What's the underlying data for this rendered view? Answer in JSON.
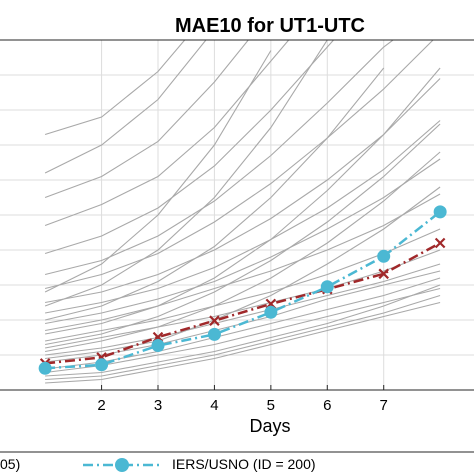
{
  "chart_data": {
    "type": "line",
    "title": "MAE10 for UT1-UTC",
    "xlabel": "Days",
    "ylabel": "",
    "x_ticks": [
      2,
      3,
      4,
      5,
      6,
      7
    ],
    "xlim": [
      0.2,
      8.6
    ],
    "ylim": [
      0,
      100
    ],
    "grid": true,
    "legend_position": "bottom",
    "highlight_series": [
      {
        "name": "IERS/USNO (ID = 200)",
        "color": "#4bb8d3",
        "style": "dash-dot",
        "marker": "circle",
        "x": [
          1,
          2,
          3,
          4,
          5,
          6,
          7,
          8
        ],
        "y": [
          6.2,
          7.2,
          12.7,
          15.9,
          22.2,
          29.5,
          38.2,
          50.9
        ]
      },
      {
        "name": "",
        "legend_label_fragment": "05)",
        "color": "#a0282a",
        "style": "dash-dot",
        "marker": "x",
        "x": [
          1,
          2,
          3,
          4,
          5,
          6,
          7,
          8
        ],
        "y": [
          7.6,
          9.3,
          15.1,
          19.8,
          24.6,
          28.8,
          33.2,
          42.0
        ]
      }
    ],
    "gray_series": [
      {
        "x": [
          1,
          2,
          3
        ],
        "y": [
          116,
          117,
          124
        ]
      },
      {
        "x": [
          1,
          2,
          3,
          4
        ],
        "y": [
          73,
          78,
          91,
          110
        ]
      },
      {
        "x": [
          1,
          2,
          3,
          4
        ],
        "y": [
          62,
          70,
          83,
          103
        ]
      },
      {
        "x": [
          1,
          2,
          3,
          4,
          5
        ],
        "y": [
          55,
          61,
          71,
          88,
          108
        ]
      },
      {
        "x": [
          1,
          2,
          3,
          4,
          5,
          6
        ],
        "y": [
          47,
          53,
          61,
          75,
          94,
          113
        ]
      },
      {
        "x": [
          1,
          2,
          3,
          4,
          5,
          6,
          7
        ],
        "y": [
          39,
          44,
          52,
          64,
          80,
          98,
          116
        ]
      },
      {
        "x": [
          1,
          2,
          3,
          4,
          5,
          6,
          7,
          8
        ],
        "y": [
          33,
          37,
          44,
          54,
          67,
          82,
          98,
          110
        ]
      },
      {
        "x": [
          1,
          2,
          3,
          4,
          5,
          6,
          7,
          8
        ],
        "y": [
          29,
          33,
          39,
          48,
          59,
          72,
          86,
          102
        ]
      },
      {
        "x": [
          1,
          2,
          3,
          4,
          5,
          6,
          7,
          8
        ],
        "y": [
          25,
          28,
          33,
          40,
          49,
          60,
          73,
          89
        ]
      },
      {
        "x": [
          1,
          2,
          3,
          4,
          5,
          6,
          7,
          8
        ],
        "y": [
          22,
          25,
          29,
          35,
          43,
          52,
          63,
          77
        ]
      },
      {
        "x": [
          1,
          2,
          3,
          4,
          5,
          6,
          7,
          8
        ],
        "y": [
          19,
          22,
          26,
          31,
          38,
          46,
          55,
          66
        ]
      },
      {
        "x": [
          1,
          2,
          3,
          4,
          5,
          6,
          7,
          8
        ],
        "y": [
          17,
          20,
          24,
          29,
          34,
          40,
          47,
          56
        ]
      },
      {
        "x": [
          1,
          2,
          3,
          4,
          5,
          6,
          7,
          8
        ],
        "y": [
          14,
          17,
          20,
          24,
          28,
          33,
          39,
          46
        ]
      },
      {
        "x": [
          1,
          2,
          3,
          4,
          5,
          6,
          7,
          8
        ],
        "y": [
          12,
          15,
          18,
          21,
          25,
          29,
          34,
          40
        ]
      },
      {
        "x": [
          1,
          2,
          3,
          4,
          5,
          6,
          7,
          8
        ],
        "y": [
          10,
          12,
          15,
          19,
          23,
          27,
          31,
          36
        ]
      },
      {
        "x": [
          1,
          2,
          3,
          4,
          5,
          6,
          7,
          8
        ],
        "y": [
          8,
          10,
          13,
          17,
          21,
          26,
          30,
          34
        ]
      },
      {
        "x": [
          1,
          2,
          3,
          4,
          5,
          6,
          7,
          8
        ],
        "y": [
          6,
          8,
          11,
          15,
          19,
          23,
          27,
          32
        ]
      },
      {
        "x": [
          1,
          2,
          3,
          4,
          5,
          6,
          7,
          8
        ],
        "y": [
          5,
          7,
          10,
          13,
          17,
          21,
          25,
          29
        ]
      },
      {
        "x": [
          1,
          2,
          3,
          4,
          5,
          6,
          7,
          8
        ],
        "y": [
          4,
          5,
          8,
          11,
          15,
          19,
          24,
          30
        ]
      },
      {
        "x": [
          1,
          2,
          3,
          4,
          5,
          6,
          7,
          8
        ],
        "y": [
          3,
          4,
          7,
          10,
          14,
          18,
          22,
          27
        ]
      },
      {
        "x": [
          1,
          2,
          3,
          4,
          5,
          6,
          7,
          8
        ],
        "y": [
          2,
          3,
          6,
          9,
          13,
          17,
          21,
          25
        ]
      },
      {
        "x": [
          1,
          2,
          3,
          4,
          5,
          6,
          7,
          8
        ],
        "y": [
          9,
          11,
          14,
          20,
          27,
          36,
          46,
          58
        ]
      },
      {
        "x": [
          1,
          2,
          3,
          4,
          5,
          6,
          7,
          8
        ],
        "y": [
          11,
          14,
          18,
          24,
          32,
          42,
          54,
          68
        ]
      },
      {
        "x": [
          1,
          2,
          3,
          4,
          5,
          6,
          7,
          8
        ],
        "y": [
          13,
          16,
          21,
          28,
          37,
          48,
          61,
          76
        ]
      },
      {
        "x": [
          1,
          2,
          3,
          4,
          5,
          6,
          7,
          8
        ],
        "y": [
          16,
          19,
          24,
          32,
          43,
          57,
          73,
          92
        ]
      },
      {
        "x": [
          1,
          2,
          3,
          4,
          5,
          6,
          7
        ],
        "y": [
          20,
          24,
          31,
          41,
          55,
          72,
          92
        ]
      },
      {
        "x": [
          1,
          2,
          3,
          4,
          5,
          6
        ],
        "y": [
          24,
          30,
          40,
          55,
          75,
          100
        ]
      },
      {
        "x": [
          1,
          2,
          3,
          4,
          5
        ],
        "y": [
          28,
          36,
          50,
          70,
          97
        ]
      }
    ]
  },
  "legend": {
    "left_fragment": "05)",
    "right_label": "IERS/USNO (ID = 200)"
  }
}
